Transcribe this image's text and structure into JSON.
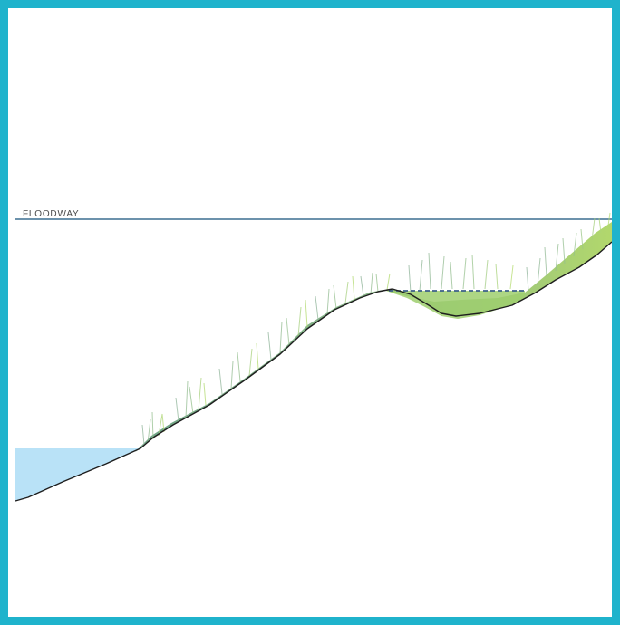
{
  "diagram": {
    "floodway_label": "FLOODWAY"
  },
  "colors": {
    "frame": "#1fb3cc",
    "background": "#ffffff",
    "floodway_line": "#3c6e91",
    "water": "#b9e2f7",
    "ground_line": "#1e1e1e",
    "vegetation_dark": "#5f9a78",
    "vegetation_light": "#a9d35c",
    "dashed_water_line": "#3c5f8a"
  }
}
